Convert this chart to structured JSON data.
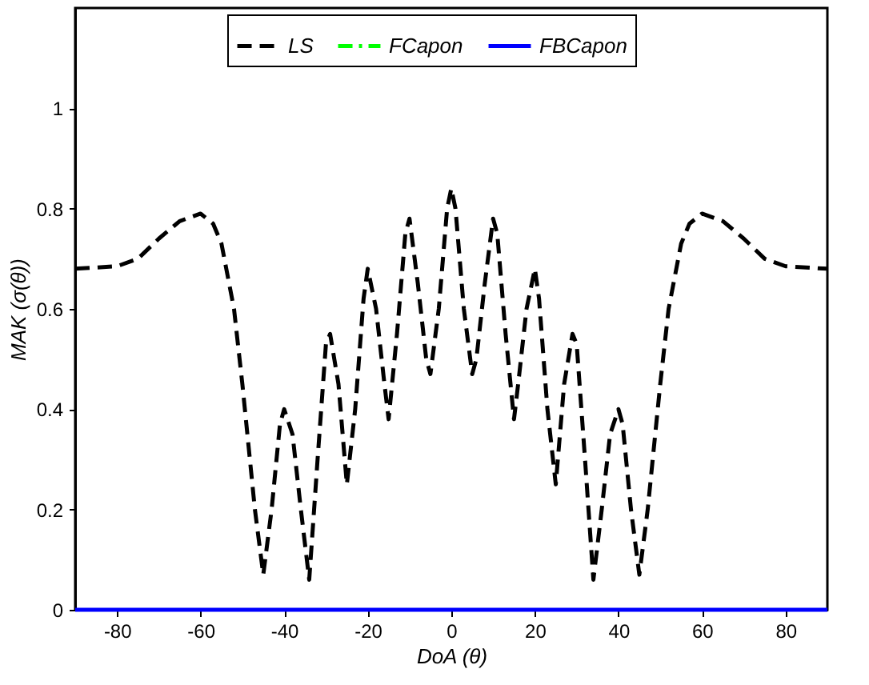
{
  "chart_data": {
    "type": "line",
    "xlabel": "DoA (θ)",
    "ylabel": "MAK (σ(θ))",
    "xlim": [
      -90,
      90
    ],
    "xticks": [
      -80,
      -60,
      -40,
      -20,
      0,
      20,
      40,
      60,
      80
    ],
    "ylim": [
      0,
      1.2
    ],
    "yticks": [
      0,
      0.2,
      0.4,
      0.6,
      0.8,
      1
    ],
    "grid": false,
    "legend": "top",
    "marker": "none",
    "series": [
      {
        "name": "LS",
        "color": "#000000",
        "line_style": "dashed",
        "x": [
          -90,
          -80,
          -75,
          -70,
          -65,
          -60,
          -57,
          -55,
          -52,
          -50,
          -47,
          -45,
          -43,
          -41,
          -40,
          -38,
          -36,
          -34,
          -32,
          -30,
          -29,
          -27,
          -25,
          -23,
          -21,
          -20,
          -18,
          -16,
          -15,
          -13,
          -11,
          -10,
          -8,
          -6,
          -5,
          -3,
          -1,
          0,
          1,
          3,
          5,
          6,
          8,
          10,
          11,
          13,
          15,
          16,
          18,
          20,
          21,
          23,
          25,
          27,
          29,
          30,
          32,
          34,
          36,
          38,
          40,
          41,
          43,
          45,
          47,
          50,
          52,
          55,
          57,
          60,
          65,
          70,
          75,
          80,
          90
        ],
        "values": [
          0.68,
          0.685,
          0.7,
          0.74,
          0.775,
          0.79,
          0.77,
          0.73,
          0.6,
          0.45,
          0.2,
          0.07,
          0.2,
          0.37,
          0.4,
          0.35,
          0.2,
          0.06,
          0.3,
          0.53,
          0.55,
          0.45,
          0.25,
          0.4,
          0.62,
          0.68,
          0.6,
          0.45,
          0.38,
          0.55,
          0.75,
          0.78,
          0.65,
          0.5,
          0.47,
          0.6,
          0.8,
          0.84,
          0.8,
          0.6,
          0.47,
          0.5,
          0.65,
          0.78,
          0.75,
          0.55,
          0.38,
          0.45,
          0.6,
          0.68,
          0.62,
          0.4,
          0.25,
          0.45,
          0.55,
          0.53,
          0.3,
          0.06,
          0.2,
          0.35,
          0.4,
          0.37,
          0.2,
          0.07,
          0.2,
          0.45,
          0.6,
          0.73,
          0.77,
          0.79,
          0.775,
          0.74,
          0.7,
          0.685,
          0.68
        ]
      },
      {
        "name": "FCapon",
        "color": "#00ff00",
        "line_style": "dashdot"
      },
      {
        "name": "FBCapon",
        "color": "#0000ff",
        "line_style": "solid",
        "x": [
          -90,
          90
        ],
        "values": [
          0,
          0
        ]
      }
    ]
  }
}
